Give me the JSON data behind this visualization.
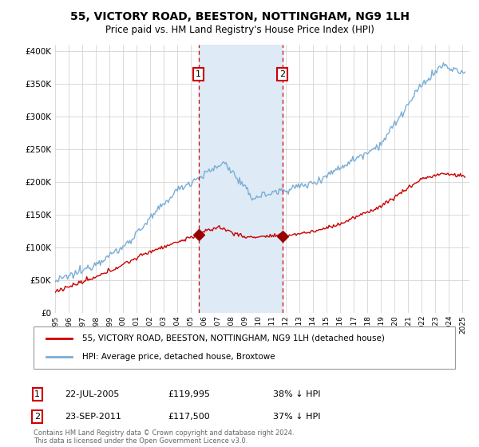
{
  "title": "55, VICTORY ROAD, BEESTON, NOTTINGHAM, NG9 1LH",
  "subtitle": "Price paid vs. HM Land Registry's House Price Index (HPI)",
  "ylim": [
    0,
    410000
  ],
  "xlim_start": 1995.0,
  "xlim_end": 2025.5,
  "legend_house": "55, VICTORY ROAD, BEESTON, NOTTINGHAM, NG9 1LH (detached house)",
  "legend_hpi": "HPI: Average price, detached house, Broxtowe",
  "transaction1_date": "22-JUL-2005",
  "transaction1_price": "£119,995",
  "transaction1_pct": "38% ↓ HPI",
  "transaction1_x": 2005.55,
  "transaction1_y": 119995,
  "transaction2_date": "23-SEP-2011",
  "transaction2_price": "£117,500",
  "transaction2_pct": "37% ↓ HPI",
  "transaction2_x": 2011.72,
  "transaction2_y": 117500,
  "house_color": "#cc0000",
  "hpi_color": "#7aaed6",
  "hpi_span_color": "#deeaf5",
  "vline_color": "#cc0000",
  "dot_color": "#990000",
  "footer": "Contains HM Land Registry data © Crown copyright and database right 2024.\nThis data is licensed under the Open Government Licence v3.0.",
  "background_color": "#ffffff",
  "grid_color": "#cccccc"
}
